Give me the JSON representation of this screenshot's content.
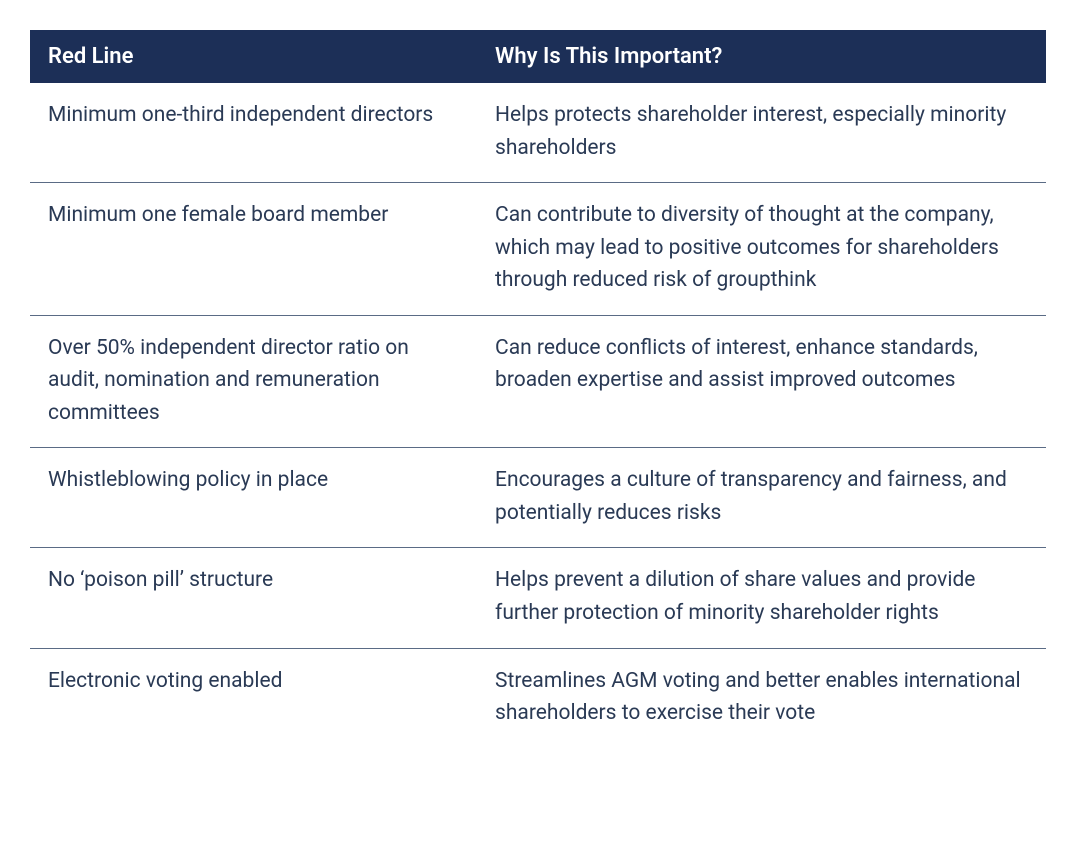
{
  "table": {
    "type": "table",
    "header_bg_color": "#1c2f57",
    "header_text_color": "#ffffff",
    "body_text_color": "#2a3a55",
    "row_border_color": "#5a6b85",
    "background_color": "#ffffff",
    "header_fontsize": 22,
    "body_fontsize": 21,
    "line_height": 1.55,
    "column_widths": [
      "44%",
      "56%"
    ],
    "columns": [
      "Red Line",
      "Why Is This Important?"
    ],
    "rows": [
      {
        "red_line": "Minimum one-third independent directors",
        "why": "Helps protects shareholder interest, especially minority shareholders"
      },
      {
        "red_line": "Minimum one female board member",
        "why": "Can contribute to diversity of thought at the company, which may lead to positive outcomes for shareholders through reduced risk of groupthink"
      },
      {
        "red_line": "Over 50% independent director ratio on audit, nomination and remuneration committees",
        "why": "Can reduce conflicts of interest, enhance standards, broaden expertise and assist improved outcomes"
      },
      {
        "red_line": "Whistleblowing policy in place",
        "why": "Encourages a culture of transparency and fairness, and potentially reduces risks"
      },
      {
        "red_line": "No ‘poison pill’ structure",
        "why": "Helps prevent a dilution of share values and provide further protection of minority shareholder rights"
      },
      {
        "red_line": "Electronic voting enabled",
        "why": "Streamlines AGM voting and better enables international shareholders to exercise their vote"
      }
    ]
  }
}
